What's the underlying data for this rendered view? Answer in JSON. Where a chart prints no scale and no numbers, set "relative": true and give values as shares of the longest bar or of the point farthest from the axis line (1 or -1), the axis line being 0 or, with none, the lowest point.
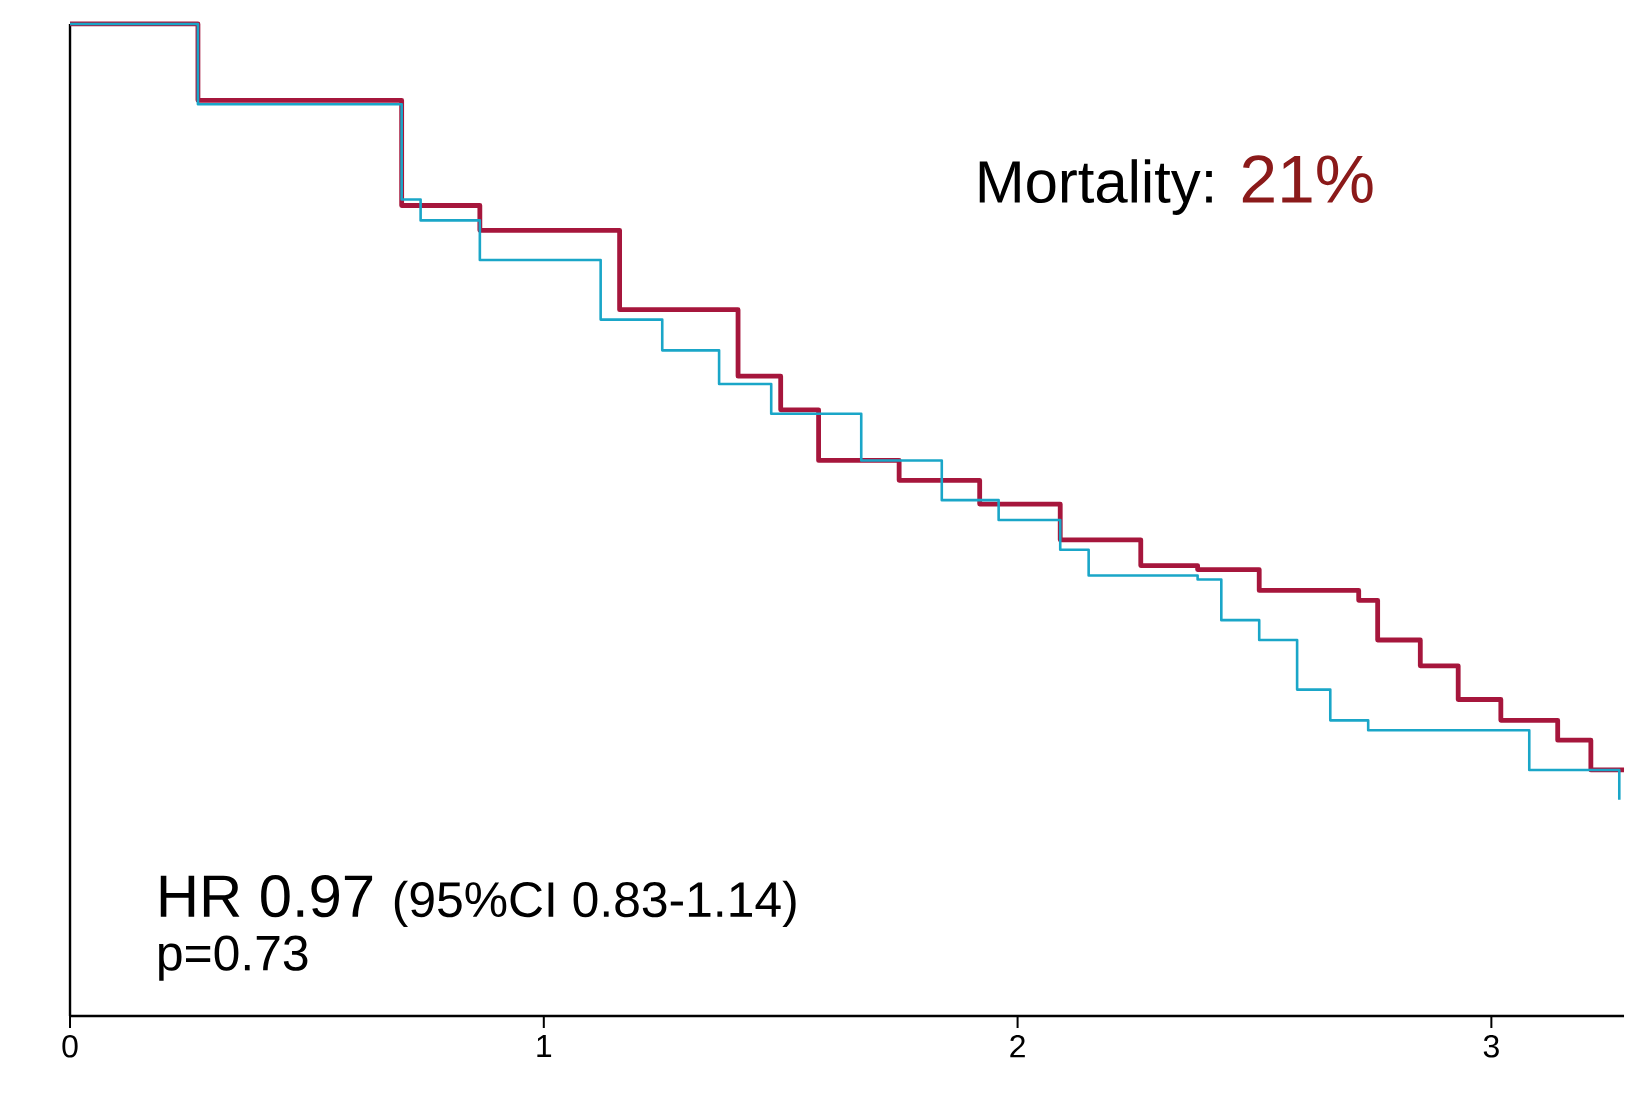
{
  "chart_data": {
    "type": "step",
    "relative": true,
    "xlim": [
      0,
      3.28
    ],
    "xticks": [
      0,
      1,
      2,
      3
    ],
    "annotations": [
      "Mortality: ",
      "21%",
      "HR 0.97",
      "(95%CI 0.83-1.14)",
      "p=0.73"
    ],
    "series": [
      {
        "color": "#a6163c",
        "x": [
          0,
          0.27,
          0.7,
          0.865,
          1.16,
          1.41,
          1.5,
          1.58,
          1.75,
          1.92,
          2.09,
          2.26,
          2.38,
          2.51,
          2.72,
          2.76,
          2.85,
          2.93,
          3.02,
          3.14,
          3.21,
          3.28
        ],
        "values": [
          1.0,
          0.923,
          0.817,
          0.792,
          0.712,
          0.645,
          0.611,
          0.56,
          0.54,
          0.516,
          0.48,
          0.454,
          0.45,
          0.429,
          0.419,
          0.379,
          0.353,
          0.319,
          0.298,
          0.278,
          0.248,
          0.248
        ]
      },
      {
        "color": "#1aa6c8",
        "x": [
          0,
          0.27,
          0.7,
          0.74,
          0.865,
          1.12,
          1.25,
          1.37,
          1.48,
          1.54,
          1.67,
          1.84,
          1.96,
          2.09,
          2.15,
          2.38,
          2.43,
          2.51,
          2.59,
          2.66,
          2.74,
          3.0,
          3.08,
          3.21,
          3.27
        ],
        "values": [
          1.0,
          0.919,
          0.823,
          0.802,
          0.762,
          0.702,
          0.671,
          0.637,
          0.607,
          0.607,
          0.56,
          0.52,
          0.5,
          0.47,
          0.444,
          0.44,
          0.399,
          0.379,
          0.329,
          0.298,
          0.288,
          0.288,
          0.248,
          0.248,
          0.218
        ]
      }
    ]
  }
}
